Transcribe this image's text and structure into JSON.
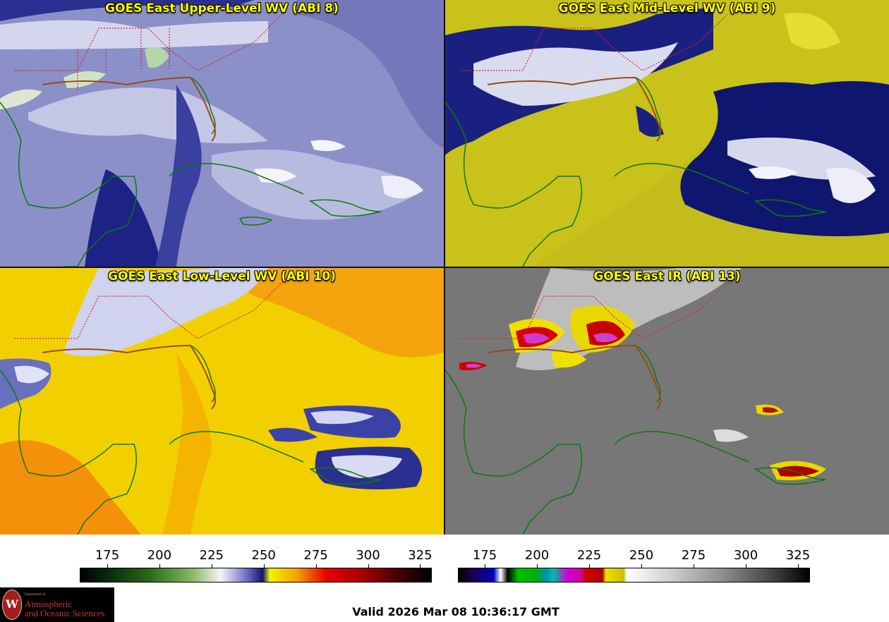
{
  "panels": [
    {
      "id": "p1",
      "title": "GOES East Upper-Level WV (ABI 8)",
      "bg": "#8488c4",
      "blotch": "#1a1f8a",
      "light": "#e8e8f4"
    },
    {
      "id": "p2",
      "title": "GOES East Mid-Level WV (ABI 9)",
      "bg": "#c9c21a",
      "blotch": "#101874",
      "light": "#e6e6f2"
    },
    {
      "id": "p3",
      "title": "GOES East Low-Level WV (ABI 10)",
      "bg": "#f3d400",
      "blotch": "#f2a000",
      "light": "#d8dcf4"
    },
    {
      "id": "p4",
      "title": "GOES East IR (ABI 13)",
      "bg": "#7a7a7a",
      "blotch": "#8a8a8a",
      "light": "#ececec"
    }
  ],
  "colorbars": {
    "wv": {
      "ticks": [
        "175",
        "200",
        "225",
        "250",
        "275",
        "300",
        "325"
      ]
    },
    "ir": {
      "ticks": [
        "175",
        "200",
        "225",
        "250",
        "275",
        "300",
        "325"
      ]
    }
  },
  "footer": {
    "valid": "Valid 2026 Mar 08 10:36:17 GMT"
  },
  "logo": {
    "dept": "Department of",
    "line1": "Atmospheric",
    "line2": "and Oceanic Sciences",
    "seal_letter": "W"
  },
  "colors": {
    "coast": "#0c7a0c",
    "state_border": "#e02020",
    "title": "#ffff00"
  }
}
